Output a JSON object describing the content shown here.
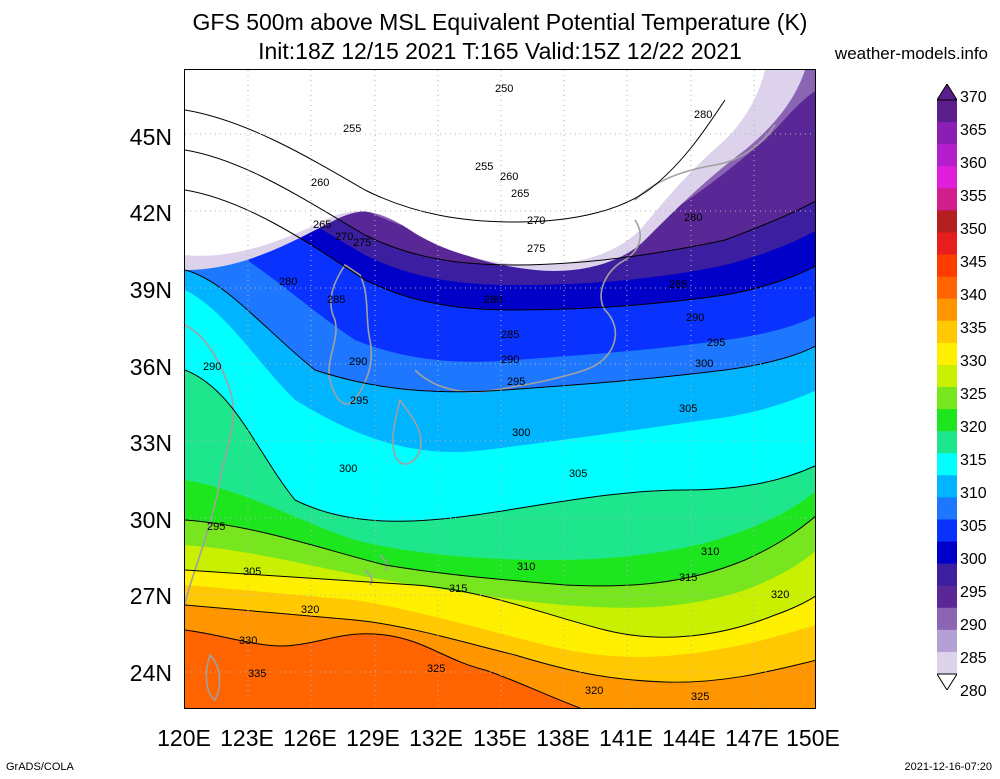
{
  "title": {
    "line1": "GFS 500m above MSL Equivalent Potential Temperature (K)",
    "line2": "Init:18Z 12/15 2021 T:165 Valid:15Z 12/22 2021"
  },
  "source": "weather-models.info",
  "footer": {
    "left": "GrADS/COLA",
    "right": "2021-12-16-07:20"
  },
  "map": {
    "lon_range": [
      120,
      150
    ],
    "lat_range": [
      22.5,
      47.5
    ],
    "lat_labels": [
      "45N",
      "42N",
      "39N",
      "36N",
      "33N",
      "30N",
      "27N",
      "24N"
    ],
    "lon_labels": [
      "120E",
      "123E",
      "126E",
      "129E",
      "132E",
      "135E",
      "138E",
      "141E",
      "144E",
      "147E",
      "150E"
    ],
    "contour_labels": [
      "250",
      "255",
      "255",
      "260",
      "260",
      "265",
      "265",
      "270",
      "270",
      "275",
      "275",
      "280",
      "280",
      "280",
      "280",
      "285",
      "285",
      "285",
      "290",
      "290",
      "290",
      "290",
      "295",
      "295",
      "295",
      "295",
      "300",
      "300",
      "300",
      "305",
      "305",
      "305",
      "310",
      "310",
      "315",
      "315",
      "320",
      "320",
      "320",
      "325",
      "325",
      "330",
      "335"
    ]
  },
  "colorbar": {
    "labels": [
      "370",
      "365",
      "360",
      "355",
      "350",
      "345",
      "340",
      "335",
      "330",
      "325",
      "320",
      "315",
      "310",
      "305",
      "300",
      "295",
      "290",
      "285",
      "280"
    ],
    "colors": [
      "#5a1e8c",
      "#8c1eb4",
      "#b41ecc",
      "#e01edc",
      "#d01e8c",
      "#b41e1e",
      "#e61e1e",
      "#ff3c00",
      "#ff6400",
      "#ff9600",
      "#ffc800",
      "#fff000",
      "#c8f000",
      "#78e61e",
      "#1ee61e",
      "#1ee68c",
      "#00ffff",
      "#00b4ff",
      "#1e78ff",
      "#0a32ff",
      "#0000c8",
      "#3c1ea0",
      "#5a2896",
      "#8c64b4",
      "#b4a0d2",
      "#dcd2eb"
    ]
  }
}
